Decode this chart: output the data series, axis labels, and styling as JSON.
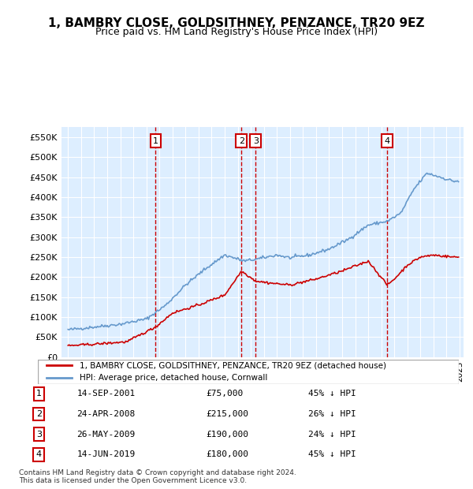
{
  "title": "1, BAMBRY CLOSE, GOLDSITHNEY, PENZANCE, TR20 9EZ",
  "subtitle": "Price paid vs. HM Land Registry's House Price Index (HPI)",
  "transactions": [
    {
      "num": 1,
      "date": "2001-09-14",
      "price": 75000,
      "pct": "45% ↓ HPI"
    },
    {
      "num": 2,
      "date": "2008-04-24",
      "price": 215000,
      "pct": "26% ↓ HPI"
    },
    {
      "num": 3,
      "date": "2009-05-26",
      "price": 190000,
      "pct": "24% ↓ HPI"
    },
    {
      "num": 4,
      "date": "2019-06-14",
      "price": 180000,
      "pct": "45% ↓ HPI"
    }
  ],
  "legend_line1": "1, BAMBRY CLOSE, GOLDSITHNEY, PENZANCE, TR20 9EZ (detached house)",
  "legend_line2": "HPI: Average price, detached house, Cornwall",
  "footer1": "Contains HM Land Registry data © Crown copyright and database right 2024.",
  "footer2": "This data is licensed under the Open Government Licence v3.0.",
  "price_color": "#cc0000",
  "hpi_color": "#6699cc",
  "ylim": [
    0,
    575000
  ],
  "yticks": [
    0,
    50000,
    100000,
    150000,
    200000,
    250000,
    300000,
    350000,
    400000,
    450000,
    500000,
    550000
  ],
  "background_color": "#ddeeff"
}
